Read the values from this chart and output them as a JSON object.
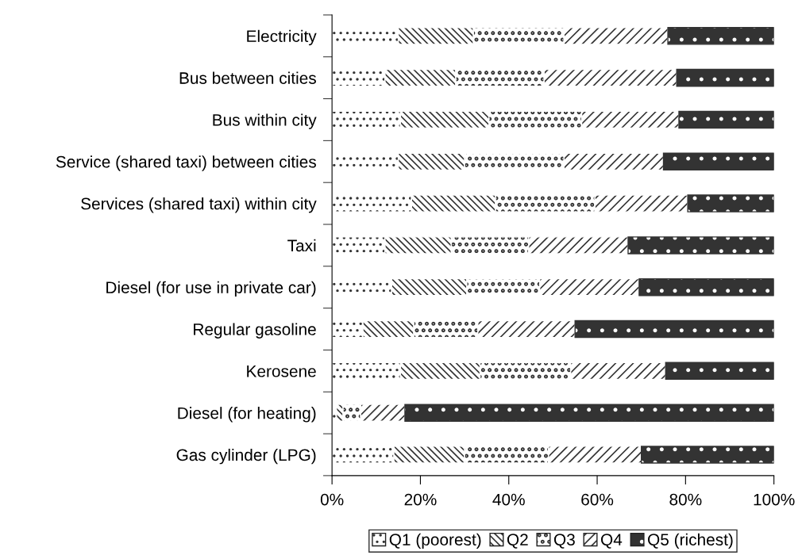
{
  "chart_data": {
    "type": "bar",
    "orientation": "horizontal",
    "stacked": true,
    "categories": [
      "Electricity",
      "Bus between cities",
      "Bus within city",
      "Service (shared taxi) between cities",
      "Services (shared taxi) within city",
      "Taxi",
      "Diesel (for use in private car)",
      "Regular gasoline",
      "Kerosene",
      "Diesel (for heating)",
      "Gas cylinder (LPG)"
    ],
    "series": [
      {
        "name": "Q1 (poorest)",
        "color": "#ffffff",
        "values": [
          15,
          12,
          15.5,
          15,
          18,
          12,
          13.5,
          7,
          15.5,
          1,
          14
        ]
      },
      {
        "name": "Q2",
        "color": "#ffffff",
        "values": [
          17,
          16,
          20,
          15,
          19,
          15,
          17,
          11.5,
          18,
          1.5,
          16
        ]
      },
      {
        "name": "Q3",
        "color": "#ffffff",
        "values": [
          20.5,
          20,
          21,
          22.5,
          22.5,
          17.5,
          16.5,
          14.5,
          20.5,
          4,
          19
        ]
      },
      {
        "name": "Q4",
        "color": "#ffffff",
        "values": [
          23.5,
          30,
          22,
          22.5,
          21,
          22.5,
          22.5,
          22,
          21.5,
          10,
          21
        ]
      },
      {
        "name": "Q5 (richest)",
        "color": "#333333",
        "values": [
          24,
          22,
          21.5,
          25,
          19.5,
          33,
          30.5,
          45,
          24.5,
          83.5,
          30
        ]
      }
    ],
    "xlim": [
      0,
      100
    ],
    "xticks": [
      {
        "value": 0,
        "label": "0%"
      },
      {
        "value": 20,
        "label": "20%"
      },
      {
        "value": 40,
        "label": "40%"
      },
      {
        "value": 60,
        "label": "60%"
      },
      {
        "value": 80,
        "label": "80%"
      },
      {
        "value": 100,
        "label": "100%"
      }
    ],
    "grid": false,
    "legend": "bottom"
  }
}
